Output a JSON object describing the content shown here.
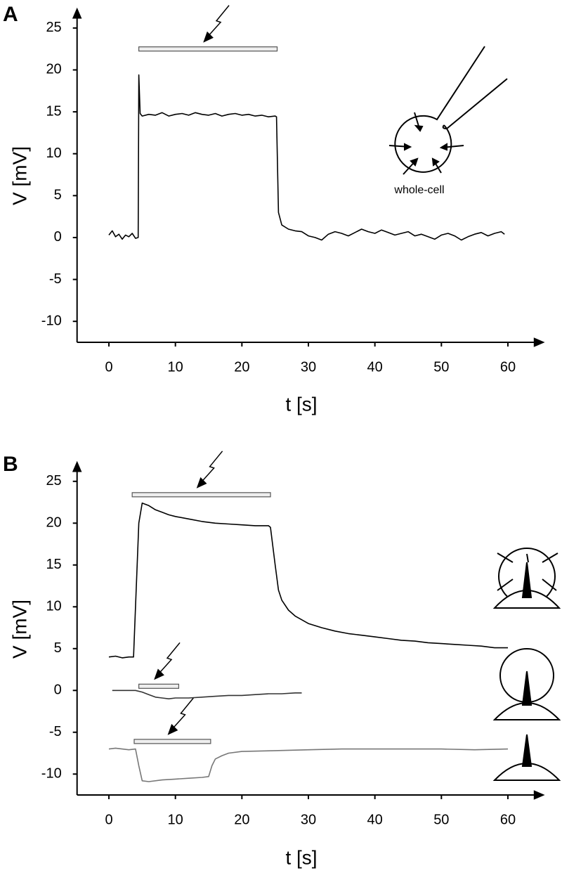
{
  "chart_data": [
    {
      "type": "line",
      "panel": "A",
      "xlabel": "t [s]",
      "ylabel": "V [mV]",
      "annotation": "whole-cell",
      "xlim": [
        -5,
        65
      ],
      "ylim": [
        -12.5,
        27
      ],
      "xticks": [
        0,
        10,
        20,
        30,
        40,
        50,
        60
      ],
      "yticks": [
        -10,
        -5,
        0,
        5,
        10,
        15,
        20,
        25
      ],
      "stimuli": [
        {
          "x": [
            4.5,
            25.3
          ],
          "y": 22.5
        }
      ],
      "series": [
        {
          "color": "#000000",
          "x": [
            0,
            0.5,
            1,
            1.5,
            2,
            2.5,
            3,
            3.5,
            4,
            4.4,
            4.5,
            4.7,
            5,
            6,
            7,
            8,
            9,
            10,
            11,
            12,
            13,
            14,
            15,
            16,
            17,
            18,
            19,
            20,
            21,
            22,
            23,
            24,
            25,
            25.2,
            25.5,
            26,
            27,
            28,
            29,
            30,
            31,
            32,
            33,
            34,
            35,
            36,
            37,
            38,
            39,
            40,
            41,
            42,
            43,
            44,
            45,
            46,
            47,
            48,
            49,
            50,
            51,
            52,
            53,
            54,
            55,
            56,
            57,
            58,
            59,
            59.5
          ],
          "values": [
            0.3,
            0.8,
            0.1,
            0.4,
            -0.2,
            0.3,
            0.1,
            0.5,
            -0.1,
            0,
            19.4,
            14.8,
            14.5,
            14.7,
            14.6,
            14.9,
            14.5,
            14.7,
            14.8,
            14.6,
            14.9,
            14.7,
            14.6,
            14.8,
            14.5,
            14.7,
            14.8,
            14.6,
            14.7,
            14.5,
            14.6,
            14.4,
            14.5,
            14.4,
            3,
            1.5,
            1,
            0.8,
            0.7,
            0.2,
            0,
            -0.3,
            0.4,
            0.7,
            0.5,
            0.2,
            0.6,
            1,
            0.7,
            0.5,
            0.9,
            0.6,
            0.3,
            0.5,
            0.7,
            0.2,
            0.4,
            0.1,
            -0.2,
            0.3,
            0.5,
            0.2,
            -0.3,
            0.1,
            0.4,
            0.6,
            0.2,
            0.5,
            0.7,
            0.4
          ]
        }
      ]
    },
    {
      "type": "line",
      "panel": "B",
      "xlabel": "t [s]",
      "ylabel": "V [mV]",
      "xlim": [
        -5,
        65
      ],
      "ylim": [
        -12.5,
        27
      ],
      "xticks": [
        0,
        10,
        20,
        30,
        40,
        50,
        60
      ],
      "yticks": [
        -10,
        -5,
        0,
        5,
        10,
        15,
        20,
        25
      ],
      "stimuli": [
        {
          "x": [
            3.5,
            24.3
          ],
          "y": 23.4
        },
        {
          "x": [
            4.5,
            10.5
          ],
          "y": 0.5
        },
        {
          "x": [
            3.8,
            15.3
          ],
          "y": -6.1
        }
      ],
      "series": [
        {
          "color": "#000000",
          "x": [
            0,
            1,
            2,
            3,
            3.7,
            4,
            4.5,
            5,
            6,
            7,
            8,
            9,
            10,
            12,
            14,
            16,
            18,
            20,
            22,
            24,
            24.3,
            25,
            25.5,
            26,
            27,
            28,
            30,
            32,
            34,
            36,
            38,
            40,
            42,
            44,
            46,
            48,
            50,
            52,
            54,
            56,
            58,
            60
          ],
          "values": [
            4,
            4.1,
            3.9,
            4,
            4,
            10,
            20,
            22.4,
            22.1,
            21.6,
            21.3,
            21,
            20.8,
            20.5,
            20.2,
            20,
            19.9,
            19.8,
            19.7,
            19.7,
            19.5,
            15,
            12,
            10.8,
            9.6,
            8.9,
            8,
            7.5,
            7.1,
            6.8,
            6.6,
            6.4,
            6.2,
            6,
            5.9,
            5.7,
            5.6,
            5.5,
            5.4,
            5.3,
            5.1,
            5.1
          ]
        },
        {
          "color": "#333333",
          "x": [
            0.5,
            2,
            4,
            5,
            6,
            7,
            8,
            9,
            10,
            12,
            14,
            16,
            18,
            20,
            22,
            24,
            26,
            28,
            29
          ],
          "values": [
            0,
            0,
            0,
            -0.2,
            -0.5,
            -0.8,
            -0.9,
            -1,
            -0.9,
            -0.9,
            -0.8,
            -0.7,
            -0.6,
            -0.6,
            -0.5,
            -0.4,
            -0.4,
            -0.3,
            -0.3
          ]
        },
        {
          "color": "#777777",
          "x": [
            0,
            1,
            2,
            3,
            4,
            4.5,
            5,
            6,
            8,
            10,
            12,
            14,
            15,
            15.5,
            16,
            17,
            18,
            20,
            25,
            30,
            35,
            40,
            45,
            50,
            55,
            60
          ],
          "values": [
            -7,
            -6.9,
            -7,
            -7.1,
            -7,
            -9,
            -10.8,
            -10.9,
            -10.7,
            -10.6,
            -10.5,
            -10.4,
            -10.3,
            -9,
            -8.2,
            -7.8,
            -7.5,
            -7.3,
            -7.2,
            -7.1,
            -7,
            -7,
            -7,
            -7,
            -7.1,
            -7
          ]
        }
      ]
    }
  ]
}
